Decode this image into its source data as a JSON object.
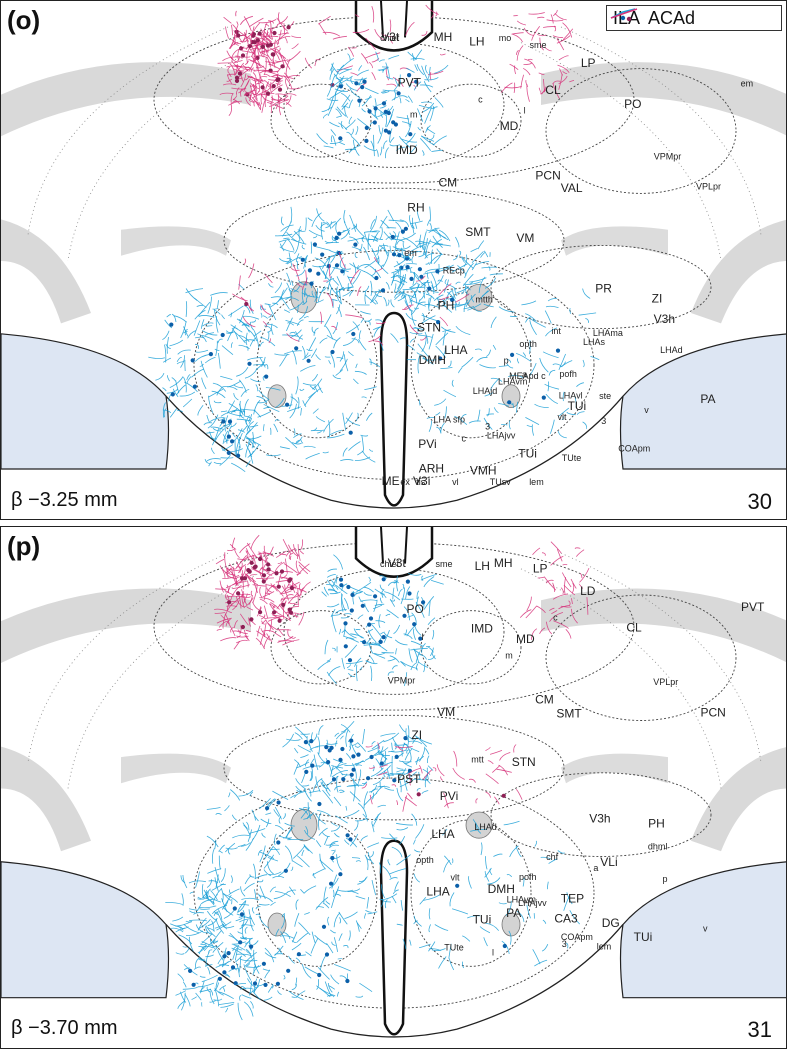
{
  "legend": {
    "ila_label": "ILA",
    "acad_label": "ACAd",
    "ila_color": "#1a9fd6",
    "ila_soma_color": "#0b5fa8",
    "acad_color": "#d6337a",
    "acad_soma_color": "#8e1f55"
  },
  "panels": [
    {
      "id": "o",
      "label": "(o)",
      "bregma": "β −3.25 mm",
      "level": "30",
      "labels": [
        "chief",
        "V3t",
        "MH",
        "mo",
        "LH",
        "sme",
        "LP",
        "em",
        "PO",
        "CL",
        "PVT",
        "c",
        "MD",
        "l",
        "m",
        "IMD",
        "VPMpr",
        "VPLpr",
        "PCN",
        "VAL",
        "CM",
        "RH",
        "SMT",
        "VM",
        "em",
        "REcp",
        "PR",
        "ZI",
        "mtth",
        "PH",
        "STN",
        "V3h",
        "int",
        "LHAma",
        "LHAs",
        "LHAd",
        "opth",
        "a",
        "p",
        "MEApd c",
        "DMH",
        "LHA",
        "LHAjd",
        "pofh",
        "LHAvm",
        "LHAvl",
        "ste",
        "PA",
        "v",
        "LHA sfp",
        "vlt",
        "TUi",
        "3",
        "3",
        "LHAjvv",
        "PVi",
        "c",
        "COApm",
        "TUi",
        "TUte",
        "ARH",
        "VMH",
        "vl",
        "V3i",
        "lem",
        "TUsv",
        "ME",
        "ex",
        "tis"
      ]
    },
    {
      "id": "p",
      "label": "(p)",
      "bregma": "β −3.70 mm",
      "level": "31",
      "labels": [
        "chief",
        "V3t",
        "sme",
        "MH",
        "LH",
        "LP",
        "LD",
        "PVT",
        "CL",
        "c",
        "PO",
        "IMD",
        "m",
        "MD",
        "l",
        "VPMpr",
        "VPLpr",
        "PCN",
        "CM",
        "SMT",
        "VM",
        "ZI",
        "mtt",
        "STN",
        "PST",
        "PVi",
        "V3h",
        "PH",
        "LHAd",
        "LHA",
        "opth",
        "dhml",
        "chf",
        "VLi",
        "a",
        "p",
        "pofh",
        "LHAvm",
        "DMH",
        "LHAjvv",
        "LHA",
        "vlt",
        "TUi",
        "TEP",
        "PA",
        "CA3",
        "DG",
        "v",
        "TUi",
        "TUte",
        "3",
        "COApm",
        "lem",
        "l"
      ]
    }
  ]
}
